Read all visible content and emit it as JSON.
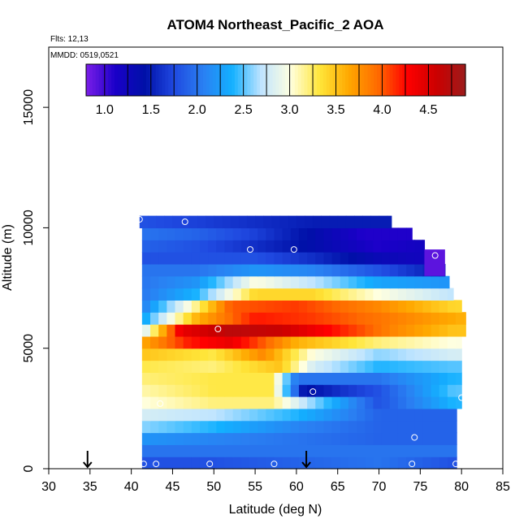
{
  "chart_data": {
    "type": "heatmap",
    "title": "ATOM4 Northeast_Pacific_2 AOA",
    "flights_text": "Flts: 12,13",
    "mmdd_text": "MMDD: 0519,0521",
    "xlabel": "Latitude (deg N)",
    "ylabel": "Altitude (m)",
    "xlim": [
      30,
      85
    ],
    "ylim": [
      0,
      17500
    ],
    "xticks": [
      "30",
      "35",
      "40",
      "45",
      "50",
      "55",
      "60",
      "65",
      "70",
      "75",
      "80",
      "85"
    ],
    "yticks": [
      "0",
      "5000",
      "10000",
      "15000"
    ],
    "colorbar": {
      "range": [
        0.8,
        4.9
      ],
      "ticks": [
        "1.0",
        "1.5",
        "2.0",
        "2.5",
        "3.0",
        "3.5",
        "4.0",
        "4.5"
      ],
      "stops": [
        "#7b1ee8",
        "#1a00c8",
        "#0010a8",
        "#1f48e0",
        "#2a7ff2",
        "#13b0ff",
        "#bfe4ff",
        "#ffffe0",
        "#ffe63a",
        "#ffa800",
        "#ff6a00",
        "#ff0000",
        "#cc0000",
        "#9c1c1c"
      ]
    },
    "arrows_latitude": [
      34.7,
      61.2
    ],
    "grid": false,
    "legend": "colorbar at top",
    "layers": [
      {
        "alt": [
          0,
          500
        ],
        "vals": [
          [
            41,
            1.8
          ],
          [
            50,
            1.8
          ],
          [
            60,
            1.9
          ],
          [
            70,
            2.0
          ],
          [
            79,
            1.8
          ]
        ]
      },
      {
        "alt": [
          500,
          1000
        ],
        "vals": [
          [
            41,
            2.0
          ],
          [
            50,
            2.0
          ],
          [
            60,
            2.0
          ],
          [
            70,
            2.0
          ],
          [
            79,
            2.0
          ]
        ]
      },
      {
        "alt": [
          1000,
          1500
        ],
        "vals": [
          [
            41,
            2.2
          ],
          [
            50,
            2.1
          ],
          [
            60,
            2.0
          ],
          [
            70,
            1.9
          ],
          [
            79,
            1.9
          ]
        ]
      },
      {
        "alt": [
          1500,
          2000
        ],
        "vals": [
          [
            41,
            2.6
          ],
          [
            50,
            2.4
          ],
          [
            60,
            2.1
          ],
          [
            70,
            1.9
          ],
          [
            79,
            1.9
          ]
        ]
      },
      {
        "alt": [
          2000,
          2500
        ],
        "vals": [
          [
            41,
            2.8
          ],
          [
            50,
            2.7
          ],
          [
            60,
            2.4
          ],
          [
            70,
            1.9
          ],
          [
            79,
            1.9
          ]
        ]
      },
      {
        "alt": [
          2500,
          3000
        ],
        "vals": [
          [
            41,
            3.0
          ],
          [
            50,
            3.2
          ],
          [
            57,
            3.2
          ],
          [
            62,
            2.6
          ],
          [
            70,
            1.8
          ],
          [
            79,
            2.4
          ]
        ]
      },
      {
        "alt": [
          3000,
          3500
        ],
        "vals": [
          [
            41,
            3.1
          ],
          [
            50,
            3.3
          ],
          [
            57,
            3.3
          ],
          [
            61,
            1.4
          ],
          [
            65,
            1.6
          ],
          [
            70,
            1.8
          ],
          [
            79,
            2.5
          ]
        ]
      },
      {
        "alt": [
          3500,
          4000
        ],
        "vals": [
          [
            41,
            3.2
          ],
          [
            50,
            3.3
          ],
          [
            57,
            3.3
          ],
          [
            60,
            2.0
          ],
          [
            70,
            2.0
          ],
          [
            79,
            2.4
          ]
        ]
      },
      {
        "alt": [
          4000,
          4500
        ],
        "vals": [
          [
            41,
            3.3
          ],
          [
            50,
            3.2
          ],
          [
            58,
            3.5
          ],
          [
            62,
            2.8
          ],
          [
            70,
            2.4
          ],
          [
            79,
            2.5
          ]
        ]
      },
      {
        "alt": [
          4500,
          5000
        ],
        "vals": [
          [
            41,
            3.5
          ],
          [
            50,
            3.3
          ],
          [
            56,
            3.8
          ],
          [
            62,
            3.0
          ],
          [
            70,
            2.6
          ],
          [
            79,
            2.8
          ]
        ]
      },
      {
        "alt": [
          5000,
          5500
        ],
        "vals": [
          [
            41,
            3.6
          ],
          [
            47,
            4.2
          ],
          [
            52,
            4.4
          ],
          [
            60,
            3.6
          ],
          [
            70,
            3.2
          ],
          [
            79,
            3.0
          ]
        ]
      },
      {
        "alt": [
          5500,
          6000
        ],
        "vals": [
          [
            41,
            2.6
          ],
          [
            46,
            4.4
          ],
          [
            52,
            4.7
          ],
          [
            58,
            4.6
          ],
          [
            65,
            4.2
          ],
          [
            72,
            3.8
          ],
          [
            79,
            3.5
          ]
        ]
      },
      {
        "alt": [
          6000,
          6500
        ],
        "vals": [
          [
            41,
            2.2
          ],
          [
            48,
            3.6
          ],
          [
            55,
            4.2
          ],
          [
            62,
            4.1
          ],
          [
            70,
            3.9
          ],
          [
            80,
            3.6
          ]
        ]
      },
      {
        "alt": [
          6500,
          7000
        ],
        "vals": [
          [
            41,
            2.0
          ],
          [
            47,
            3.0
          ],
          [
            52,
            4.0
          ],
          [
            60,
            4.1
          ],
          [
            70,
            3.8
          ],
          [
            79,
            3.4
          ]
        ]
      },
      {
        "alt": [
          7000,
          7500
        ],
        "vals": [
          [
            41,
            2.0
          ],
          [
            48,
            2.4
          ],
          [
            55,
            3.4
          ],
          [
            62,
            3.4
          ],
          [
            70,
            3.0
          ],
          [
            79,
            2.7
          ]
        ]
      },
      {
        "alt": [
          7500,
          8000
        ],
        "vals": [
          [
            41,
            2.0
          ],
          [
            48,
            2.2
          ],
          [
            55,
            3.0
          ],
          [
            62,
            2.7
          ],
          [
            70,
            2.3
          ],
          [
            78,
            2.2
          ]
        ]
      },
      {
        "alt": [
          8000,
          8500
        ],
        "vals": [
          [
            41,
            2.0
          ],
          [
            48,
            2.0
          ],
          [
            55,
            2.2
          ],
          [
            62,
            2.1
          ],
          [
            70,
            1.8
          ],
          [
            77,
            1.5
          ]
        ]
      },
      {
        "alt": [
          8500,
          9000
        ],
        "vals": [
          [
            41,
            1.8
          ],
          [
            48,
            1.8
          ],
          [
            55,
            1.8
          ],
          [
            62,
            1.6
          ],
          [
            70,
            1.3
          ],
          [
            76,
            1.2
          ]
        ]
      },
      {
        "alt": [
          9000,
          9500
        ],
        "vals": [
          [
            41,
            1.9
          ],
          [
            48,
            1.8
          ],
          [
            55,
            1.6
          ],
          [
            62,
            1.4
          ],
          [
            70,
            1.1
          ],
          [
            75,
            1.2
          ]
        ]
      },
      {
        "alt": [
          9500,
          10000
        ],
        "vals": [
          [
            41,
            2.0
          ],
          [
            48,
            1.9
          ],
          [
            55,
            1.7
          ],
          [
            62,
            1.4
          ],
          [
            68,
            1.1
          ],
          [
            73,
            1.1
          ]
        ]
      },
      {
        "alt": [
          10000,
          10500
        ],
        "vals": [
          [
            41,
            1.8
          ],
          [
            48,
            1.7
          ],
          [
            55,
            1.6
          ],
          [
            62,
            1.5
          ],
          [
            70,
            1.5
          ],
          [
            71,
            1.5
          ]
        ]
      }
    ],
    "dropout": [
      {
        "lat": [
          75.5,
          78
        ],
        "alt": [
          8000,
          9100
        ],
        "value": 0.9
      }
    ],
    "row_extents": [
      {
        "alt": [
          0,
          500
        ],
        "lat": [
          41.3,
          79.4
        ]
      },
      {
        "alt": [
          500,
          1000
        ],
        "lat": [
          41.3,
          79.4
        ]
      },
      {
        "alt": [
          1000,
          1500
        ],
        "lat": [
          41.3,
          79.4
        ]
      },
      {
        "alt": [
          1500,
          2000
        ],
        "lat": [
          41.3,
          79.4
        ]
      },
      {
        "alt": [
          2000,
          2500
        ],
        "lat": [
          41.3,
          79.4
        ]
      },
      {
        "alt": [
          2500,
          3000
        ],
        "lat": [
          41.3,
          80.0
        ]
      },
      {
        "alt": [
          3000,
          3500
        ],
        "lat": [
          41.3,
          80.0
        ]
      },
      {
        "alt": [
          3500,
          4000
        ],
        "lat": [
          41.3,
          80.0
        ]
      },
      {
        "alt": [
          4000,
          4500
        ],
        "lat": [
          41.3,
          80.0
        ]
      },
      {
        "alt": [
          4500,
          5000
        ],
        "lat": [
          41.3,
          80.0
        ]
      },
      {
        "alt": [
          5000,
          5500
        ],
        "lat": [
          41.3,
          80.0
        ]
      },
      {
        "alt": [
          5500,
          6000
        ],
        "lat": [
          41.3,
          80.5
        ]
      },
      {
        "alt": [
          6000,
          6500
        ],
        "lat": [
          41.3,
          80.5
        ]
      },
      {
        "alt": [
          6500,
          7000
        ],
        "lat": [
          41.3,
          80.0
        ]
      },
      {
        "alt": [
          7000,
          7500
        ],
        "lat": [
          41.3,
          79.0
        ]
      },
      {
        "alt": [
          7500,
          8000
        ],
        "lat": [
          41.3,
          78.5
        ]
      },
      {
        "alt": [
          8000,
          8500
        ],
        "lat": [
          41.3,
          78.0
        ]
      },
      {
        "alt": [
          8500,
          9000
        ],
        "lat": [
          41.3,
          77.5
        ]
      },
      {
        "alt": [
          9000,
          9500
        ],
        "lat": [
          41.3,
          75.5
        ]
      },
      {
        "alt": [
          9500,
          10000
        ],
        "lat": [
          41.3,
          74.0
        ]
      },
      {
        "alt": [
          10000,
          10500
        ],
        "lat": [
          41.0,
          71.5
        ]
      }
    ],
    "sample_points": [
      {
        "lat": 41.5,
        "alt": 200
      },
      {
        "lat": 43.0,
        "alt": 200
      },
      {
        "lat": 49.5,
        "alt": 200
      },
      {
        "lat": 57.3,
        "alt": 200
      },
      {
        "lat": 74.0,
        "alt": 200
      },
      {
        "lat": 79.3,
        "alt": 200
      },
      {
        "lat": 74.3,
        "alt": 1300
      },
      {
        "lat": 43.5,
        "alt": 2700
      },
      {
        "lat": 80.0,
        "alt": 2950
      },
      {
        "lat": 62.0,
        "alt": 3200
      },
      {
        "lat": 50.5,
        "alt": 5800
      },
      {
        "lat": 54.4,
        "alt": 9100
      },
      {
        "lat": 59.7,
        "alt": 9100
      },
      {
        "lat": 76.8,
        "alt": 8850
      },
      {
        "lat": 41.0,
        "alt": 10350
      },
      {
        "lat": 46.5,
        "alt": 10250
      },
      {
        "lat": 69.8,
        "alt": 10750
      }
    ]
  }
}
